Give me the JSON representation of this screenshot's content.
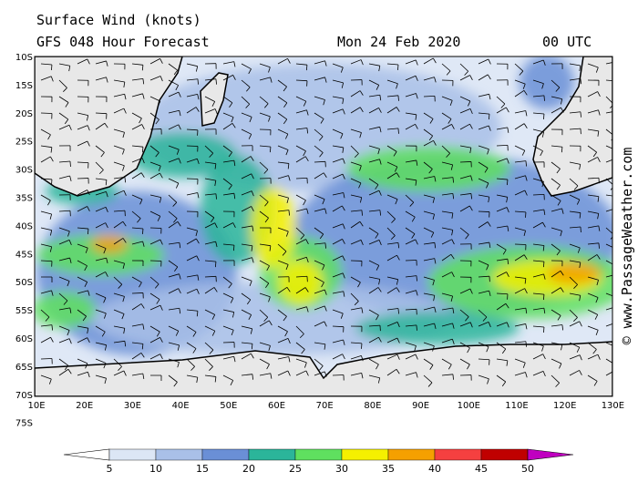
{
  "header": {
    "title": "Surface Wind (knots)",
    "subtitle": "GFS 048 Hour Forecast",
    "date": "Mon 24 Feb 2020",
    "time": "00 UTC"
  },
  "axes": {
    "lat_labels": [
      "10S",
      "15S",
      "20S",
      "25S",
      "30S",
      "35S",
      "40S",
      "45S",
      "50S",
      "55S",
      "60S",
      "65S",
      "70S",
      "75S"
    ],
    "lon_labels": [
      "10E",
      "20E",
      "30E",
      "40E",
      "50E",
      "60E",
      "70E",
      "80E",
      "90E",
      "100E",
      "110E",
      "120E",
      "130E"
    ]
  },
  "legend": {
    "labels": [
      5,
      10,
      15,
      20,
      25,
      30,
      35,
      40,
      45,
      50
    ]
  },
  "credit": "© www.PassageWeather.com"
}
